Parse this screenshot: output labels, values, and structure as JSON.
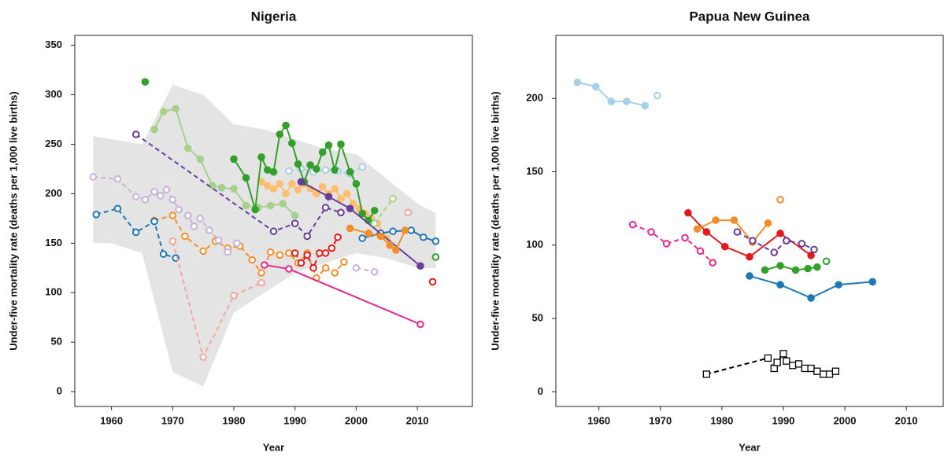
{
  "chart_data": [
    {
      "type": "line",
      "title": "Nigeria",
      "xlabel": "Year",
      "ylabel": "Under-five mortality rate (deaths per 1,000 live births)",
      "xlim": [
        1954,
        2019
      ],
      "ylim": [
        -15,
        360
      ],
      "xticks": [
        1960,
        1970,
        1980,
        1990,
        2000,
        2010
      ],
      "yticks": [
        0,
        50,
        100,
        150,
        200,
        250,
        300,
        350
      ],
      "band": {
        "color": "#e4e4e4",
        "x": [
          1957,
          1960,
          1965,
          1970,
          1975,
          1980,
          1985,
          1990,
          1995,
          2000,
          2005,
          2010,
          2013
        ],
        "upper": [
          258,
          255,
          250,
          310,
          300,
          270,
          265,
          255,
          245,
          240,
          215,
          190,
          180
        ],
        "lower": [
          150,
          150,
          140,
          20,
          5,
          80,
          100,
          120,
          130,
          140,
          135,
          125,
          125
        ]
      },
      "series": [
        {
          "color": "#a8cfe8",
          "dash": true,
          "marker": "hollow",
          "x": [
            1989,
            1991,
            1993,
            1995,
            1997,
            1999,
            2001
          ],
          "values": [
            223,
            225,
            222,
            224,
            223,
            220,
            227
          ]
        },
        {
          "color": "#a8d08d",
          "dash": false,
          "marker": "filled",
          "x": [
            1967,
            1968.5,
            1970.5,
            1972.5,
            1974.5,
            1976.5,
            1978,
            1980,
            1982,
            1984,
            1986,
            1988,
            1990
          ],
          "values": [
            265,
            283,
            286,
            246,
            235,
            208,
            206,
            205,
            188,
            186,
            188,
            190,
            178
          ]
        },
        {
          "color": "#fdbf6f",
          "dash": false,
          "marker": "filled",
          "x": [
            1984.5,
            1985.5,
            1986.5,
            1987.5,
            1988.5,
            1989.5,
            1990.5,
            1991.5,
            1992.5,
            1993.5,
            1994.5,
            1995.5,
            1996.5,
            1997.5,
            1998.5,
            1999.5,
            2000.5,
            2001.5,
            2002.5,
            2003.5,
            2005
          ],
          "values": [
            212,
            208,
            205,
            210,
            200,
            210,
            204,
            210,
            205,
            200,
            207,
            200,
            205,
            195,
            200,
            190,
            185,
            180,
            175,
            170,
            155
          ]
        },
        {
          "color": "#f28e2b",
          "dash": true,
          "marker": "hollow",
          "x": [
            1967,
            1970,
            1972,
            1975,
            1977,
            1979,
            1981,
            1983,
            1984.5,
            1986,
            1987.5,
            1989,
            1990.5,
            1992,
            1993.5,
            1995,
            1996.5,
            1998
          ],
          "values": [
            173,
            178,
            157,
            142,
            152,
            145,
            147,
            133,
            120,
            141,
            138,
            140,
            130,
            140,
            115,
            125,
            120,
            131
          ]
        },
        {
          "color": "#33a02c",
          "dash": false,
          "marker": "filled",
          "x": [
            1980,
            1982,
            1983.5,
            1984.5,
            1985.5,
            1986.5,
            1987.5,
            1988.5,
            1989.5,
            1990.5,
            1991.5,
            1992.5,
            1993.5,
            1994.5,
            1995.5,
            1996.5,
            1997.5,
            1999,
            2000,
            2001,
            2002,
            2003
          ],
          "values": [
            235,
            216,
            184,
            237,
            224,
            222,
            260,
            269,
            251,
            230,
            212,
            229,
            225,
            242,
            249,
            224,
            250,
            222,
            210,
            180,
            173,
            183
          ]
        },
        {
          "color": "#33a02c",
          "dash": false,
          "marker": "filled",
          "x": [
            1965.5
          ],
          "values": [
            313
          ]
        },
        {
          "color": "#1f78b4",
          "dash": true,
          "marker": "hollow",
          "x": [
            1957.5,
            1961,
            1964,
            1967,
            1968.5,
            1970.5
          ],
          "values": [
            179,
            185,
            161,
            172,
            139,
            135
          ]
        },
        {
          "color": "#1f78b4",
          "dash": false,
          "marker": "hollow",
          "x": [
            2001,
            2004,
            2006,
            2009,
            2011,
            2013
          ],
          "values": [
            155,
            160,
            162,
            163,
            156,
            152
          ]
        },
        {
          "color": "#cab2d6",
          "dash": true,
          "marker": "hollow",
          "x": [
            1957,
            1961,
            1964,
            1965.5,
            1967,
            1968,
            1969,
            1970,
            1971,
            1972.5,
            1973.5,
            1974.5,
            1976,
            1977.5,
            1979,
            1980.5
          ],
          "values": [
            217,
            215,
            197,
            194,
            202,
            198,
            204,
            194,
            184,
            178,
            167,
            175,
            163,
            153,
            141,
            150
          ]
        },
        {
          "color": "#cab2d6",
          "dash": true,
          "marker": "hollow",
          "x": [
            2000,
            2003
          ],
          "values": [
            125,
            121
          ]
        },
        {
          "color": "#f4a6a0",
          "dash": true,
          "marker": "hollow",
          "x": [
            1970,
            1975,
            1980,
            1984.5
          ],
          "values": [
            152,
            35,
            97,
            110
          ]
        },
        {
          "color": "#6a3d9a",
          "dash": true,
          "marker": "hollow",
          "x": [
            1964,
            1986.5,
            1990,
            1992,
            1995,
            1997.5
          ],
          "values": [
            260,
            162,
            170,
            157,
            186,
            181
          ]
        },
        {
          "color": "#6a3d9a",
          "dash": false,
          "marker": "filled",
          "x": [
            1991,
            1995.5,
            1999,
            2010.5
          ],
          "values": [
            212,
            197,
            185,
            127
          ]
        },
        {
          "color": "#e31a1c",
          "dash": true,
          "marker": "hollow",
          "x": [
            1990,
            1991,
            1992,
            1993,
            1994,
            1995,
            1996,
            1997
          ],
          "values": [
            140,
            130,
            138,
            125,
            140,
            140,
            145,
            156
          ]
        },
        {
          "color": "#e31a1c",
          "dash": false,
          "marker": "hollow",
          "x": [
            2012.5
          ],
          "values": [
            111
          ]
        },
        {
          "color": "#e7298a",
          "dash": false,
          "marker": "hollow",
          "x": [
            1985,
            1989,
            2010.5
          ],
          "values": [
            128,
            124,
            68
          ]
        },
        {
          "color": "#f28e2b",
          "dash": false,
          "marker": "filled",
          "x": [
            1999,
            2002,
            2004,
            2005.5,
            2006.5,
            2008
          ],
          "values": [
            165,
            160,
            157,
            148,
            143,
            163
          ]
        },
        {
          "color": "#a8d08d",
          "dash": true,
          "marker": "hollow",
          "x": [
            2003,
            2006
          ],
          "values": [
            170,
            195
          ]
        },
        {
          "color": "#33a02c",
          "dash": false,
          "marker": "hollow",
          "x": [
            2013
          ],
          "values": [
            136
          ]
        },
        {
          "color": "#f4a6a0",
          "dash": false,
          "marker": "hollow",
          "x": [
            2008.5
          ],
          "values": [
            181
          ]
        }
      ]
    },
    {
      "type": "line",
      "title": "Papua New Guinea",
      "xlabel": "Year",
      "ylabel": "Under-five mortality rate (deaths per 1,000 live births)",
      "xlim": [
        1953,
        2016
      ],
      "ylim": [
        -10,
        243
      ],
      "xticks": [
        1960,
        1970,
        1980,
        1990,
        2000,
        2010
      ],
      "yticks": [
        0,
        50,
        100,
        150,
        200
      ],
      "series": [
        {
          "color": "#a8cfe8",
          "dash": false,
          "marker": "filled",
          "x": [
            1956.5,
            1959.5,
            1962,
            1964.5,
            1967.5
          ],
          "values": [
            211,
            208,
            198,
            198,
            195
          ]
        },
        {
          "color": "#a8cfe8",
          "dash": false,
          "marker": "hollow",
          "x": [
            1969.5
          ],
          "values": [
            202
          ]
        },
        {
          "color": "#e7298a",
          "dash": true,
          "marker": "hollow",
          "x": [
            1965.5,
            1968.5,
            1971,
            1974,
            1976.5,
            1978.5
          ],
          "values": [
            114,
            109,
            101,
            105,
            96,
            88
          ]
        },
        {
          "color": "#e31a1c",
          "dash": false,
          "marker": "filled",
          "x": [
            1974.5,
            1977.5,
            1980.5,
            1984.5,
            1989.5,
            1994.5
          ],
          "values": [
            122,
            109,
            99,
            92,
            108,
            93
          ]
        },
        {
          "color": "#f28e2b",
          "dash": false,
          "marker": "filled",
          "x": [
            1976,
            1979,
            1982,
            1985,
            1987.5
          ],
          "values": [
            111,
            117,
            117,
            102,
            115
          ]
        },
        {
          "color": "#f28e2b",
          "dash": true,
          "marker": "hollow",
          "x": [
            1989.5
          ],
          "values": [
            131
          ]
        },
        {
          "color": "#6a3d9a",
          "dash": true,
          "marker": "hollow",
          "x": [
            1982.5,
            1985,
            1988.5,
            1990.5,
            1993,
            1995
          ],
          "values": [
            109,
            103,
            95,
            103,
            101,
            97
          ]
        },
        {
          "color": "#33a02c",
          "dash": false,
          "marker": "filled",
          "x": [
            1987,
            1989.5,
            1992,
            1994,
            1995.5
          ],
          "values": [
            83,
            86,
            83,
            84,
            85
          ]
        },
        {
          "color": "#33a02c",
          "dash": false,
          "marker": "hollow",
          "x": [
            1997
          ],
          "values": [
            89
          ]
        },
        {
          "color": "#1f78b4",
          "dash": false,
          "marker": "filled",
          "x": [
            1984.5,
            1989.5,
            1994.5,
            1999,
            2004.5
          ],
          "values": [
            79,
            73,
            64,
            73,
            75
          ]
        },
        {
          "color": "#000000",
          "dash": true,
          "marker": "square",
          "x": [
            1977.5,
            1987.5,
            1988.5,
            1989,
            1990,
            1990.5,
            1991.5,
            1992.5,
            1993.5,
            1994.5,
            1995.5,
            1996.5,
            1997.5,
            1998.5
          ],
          "values": [
            12,
            23,
            16,
            20,
            26,
            21,
            18,
            19,
            16,
            16,
            14,
            12,
            12,
            14
          ]
        }
      ]
    }
  ]
}
